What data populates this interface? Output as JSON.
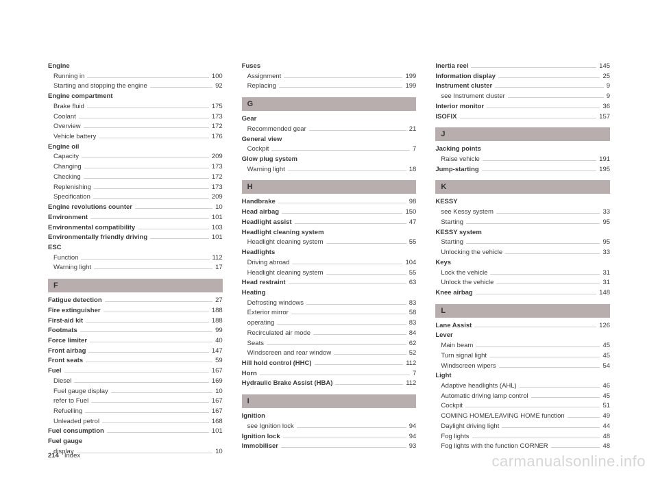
{
  "footer": {
    "page_number": "214",
    "section": "Index"
  },
  "watermark": "carmanualsonline.info",
  "columns": [
    [
      {
        "type": "heading-noline",
        "text": "Engine"
      },
      {
        "type": "sub",
        "label": "Running in",
        "page": "100"
      },
      {
        "type": "sub",
        "label": "Starting and stopping the engine",
        "page": "92"
      },
      {
        "type": "heading-noline",
        "text": "Engine compartment"
      },
      {
        "type": "sub",
        "label": "Brake fluid",
        "page": "175"
      },
      {
        "type": "sub",
        "label": "Coolant",
        "page": "173"
      },
      {
        "type": "sub",
        "label": "Overview",
        "page": "172"
      },
      {
        "type": "sub",
        "label": "Vehicle battery",
        "page": "176"
      },
      {
        "type": "heading-noline",
        "text": "Engine oil"
      },
      {
        "type": "sub",
        "label": "Capacity",
        "page": "209"
      },
      {
        "type": "sub",
        "label": "Changing",
        "page": "173"
      },
      {
        "type": "sub",
        "label": "Checking",
        "page": "172"
      },
      {
        "type": "sub",
        "label": "Replenishing",
        "page": "173"
      },
      {
        "type": "sub",
        "label": "Specification",
        "page": "209"
      },
      {
        "type": "bold",
        "label": "Engine revolutions counter",
        "page": "10"
      },
      {
        "type": "bold",
        "label": "Environment",
        "page": "101"
      },
      {
        "type": "bold",
        "label": "Environmental compatibility",
        "page": "103"
      },
      {
        "type": "bold",
        "label": "Environmentally friendly driving",
        "page": "101"
      },
      {
        "type": "heading-noline",
        "text": "ESC"
      },
      {
        "type": "sub",
        "label": "Function",
        "page": "112"
      },
      {
        "type": "sub",
        "label": "Warning light",
        "page": "17"
      },
      {
        "type": "section",
        "text": "F"
      },
      {
        "type": "bold",
        "label": "Fatigue detection",
        "page": "27"
      },
      {
        "type": "bold",
        "label": "Fire extinguisher",
        "page": "188"
      },
      {
        "type": "bold",
        "label": "First-aid kit",
        "page": "188"
      },
      {
        "type": "bold",
        "label": "Footmats",
        "page": "99"
      },
      {
        "type": "bold",
        "label": "Force limiter",
        "page": "40"
      },
      {
        "type": "bold",
        "label": "Front airbag",
        "page": "147"
      },
      {
        "type": "bold",
        "label": "Front seats",
        "page": "59"
      },
      {
        "type": "bold",
        "label": "Fuel",
        "page": "167"
      },
      {
        "type": "sub",
        "label": "Diesel",
        "page": "169"
      },
      {
        "type": "sub",
        "label": "Fuel gauge display",
        "page": "10"
      },
      {
        "type": "sub",
        "label": "refer to Fuel",
        "page": "167"
      },
      {
        "type": "sub",
        "label": "Refuelling",
        "page": "167"
      },
      {
        "type": "sub",
        "label": "Unleaded petrol",
        "page": "168"
      },
      {
        "type": "bold",
        "label": "Fuel consumption",
        "page": "101"
      },
      {
        "type": "heading-noline",
        "text": "Fuel gauge"
      },
      {
        "type": "sub",
        "label": "display",
        "page": "10"
      }
    ],
    [
      {
        "type": "heading-noline",
        "text": "Fuses"
      },
      {
        "type": "sub",
        "label": "Assignment",
        "page": "199"
      },
      {
        "type": "sub",
        "label": "Replacing",
        "page": "199"
      },
      {
        "type": "section",
        "text": "G"
      },
      {
        "type": "heading-noline",
        "text": "Gear"
      },
      {
        "type": "sub",
        "label": "Recommended gear",
        "page": "21"
      },
      {
        "type": "heading-noline",
        "text": "General view"
      },
      {
        "type": "sub",
        "label": "Cockpit",
        "page": "7"
      },
      {
        "type": "heading-noline",
        "text": "Glow plug system"
      },
      {
        "type": "sub",
        "label": "Warning light",
        "page": "18"
      },
      {
        "type": "section",
        "text": "H"
      },
      {
        "type": "bold",
        "label": "Handbrake",
        "page": "98"
      },
      {
        "type": "bold",
        "label": "Head airbag",
        "page": "150"
      },
      {
        "type": "bold",
        "label": "Headlight assist",
        "page": "47"
      },
      {
        "type": "heading-noline",
        "text": "Headlight cleaning system"
      },
      {
        "type": "sub",
        "label": "Headlight cleaning system",
        "page": "55"
      },
      {
        "type": "heading-noline",
        "text": "Headlights"
      },
      {
        "type": "sub",
        "label": "Driving abroad",
        "page": "104"
      },
      {
        "type": "sub",
        "label": "Headlight cleaning system",
        "page": "55"
      },
      {
        "type": "bold",
        "label": "Head restraint",
        "page": "63"
      },
      {
        "type": "heading-noline",
        "text": "Heating"
      },
      {
        "type": "sub",
        "label": "Defrosting windows",
        "page": "83"
      },
      {
        "type": "sub",
        "label": "Exterior mirror",
        "page": "58"
      },
      {
        "type": "sub",
        "label": "operating",
        "page": "83"
      },
      {
        "type": "sub",
        "label": "Recirculated air mode",
        "page": "84"
      },
      {
        "type": "sub",
        "label": "Seats",
        "page": "62"
      },
      {
        "type": "sub",
        "label": "Windscreen and rear window",
        "page": "52"
      },
      {
        "type": "bold",
        "label": "Hill hold control (HHC)",
        "page": "112"
      },
      {
        "type": "bold",
        "label": "Horn",
        "page": "7"
      },
      {
        "type": "bold",
        "label": "Hydraulic Brake Assist (HBA)",
        "page": "112"
      },
      {
        "type": "section",
        "text": "I"
      },
      {
        "type": "heading-noline",
        "text": "Ignition"
      },
      {
        "type": "sub",
        "label": "see Ignition lock",
        "page": "94"
      },
      {
        "type": "bold",
        "label": "Ignition lock",
        "page": "94"
      },
      {
        "type": "bold",
        "label": "Immobiliser",
        "page": "93"
      }
    ],
    [
      {
        "type": "bold",
        "label": "Inertia reel",
        "page": "145"
      },
      {
        "type": "bold",
        "label": "Information display",
        "page": "25"
      },
      {
        "type": "bold",
        "label": "Instrument cluster",
        "page": "9"
      },
      {
        "type": "sub",
        "label": "see Instrument cluster",
        "page": "9"
      },
      {
        "type": "bold",
        "label": "Interior monitor",
        "page": "36"
      },
      {
        "type": "bold",
        "label": "ISOFIX",
        "page": "157"
      },
      {
        "type": "section",
        "text": "J"
      },
      {
        "type": "heading-noline",
        "text": "Jacking points"
      },
      {
        "type": "sub",
        "label": "Raise vehicle",
        "page": "191"
      },
      {
        "type": "bold",
        "label": "Jump-starting",
        "page": "195"
      },
      {
        "type": "section",
        "text": "K"
      },
      {
        "type": "heading-noline",
        "text": "KESSY"
      },
      {
        "type": "sub",
        "label": "see Kessy system",
        "page": "33"
      },
      {
        "type": "sub",
        "label": "Starting",
        "page": "95"
      },
      {
        "type": "heading-noline",
        "text": "KESSY system"
      },
      {
        "type": "sub",
        "label": "Starting",
        "page": "95"
      },
      {
        "type": "sub",
        "label": "Unlocking the vehicle",
        "page": "33"
      },
      {
        "type": "heading-noline",
        "text": "Keys"
      },
      {
        "type": "sub",
        "label": "Lock the vehicle",
        "page": "31"
      },
      {
        "type": "sub",
        "label": "Unlock the vehicle",
        "page": "31"
      },
      {
        "type": "bold",
        "label": "Knee airbag",
        "page": "148"
      },
      {
        "type": "section",
        "text": "L"
      },
      {
        "type": "bold",
        "label": "Lane Assist",
        "page": "126"
      },
      {
        "type": "heading-noline",
        "text": "Lever"
      },
      {
        "type": "sub",
        "label": "Main beam",
        "page": "45"
      },
      {
        "type": "sub",
        "label": "Turn signal light",
        "page": "45"
      },
      {
        "type": "sub",
        "label": "Windscreen wipers",
        "page": "54"
      },
      {
        "type": "heading-noline",
        "text": "Light"
      },
      {
        "type": "sub",
        "label": "Adaptive headlights (AHL)",
        "page": "46"
      },
      {
        "type": "sub",
        "label": "Automatic driving lamp control",
        "page": "45"
      },
      {
        "type": "sub",
        "label": "Cockpit",
        "page": "51"
      },
      {
        "type": "sub",
        "label": "COMING HOME/LEAVING HOME function",
        "page": "49"
      },
      {
        "type": "sub",
        "label": "Daylight driving light",
        "page": "44"
      },
      {
        "type": "sub",
        "label": "Fog lights",
        "page": "48"
      },
      {
        "type": "sub",
        "label": "Fog lights with the function CORNER",
        "page": "48"
      }
    ]
  ]
}
